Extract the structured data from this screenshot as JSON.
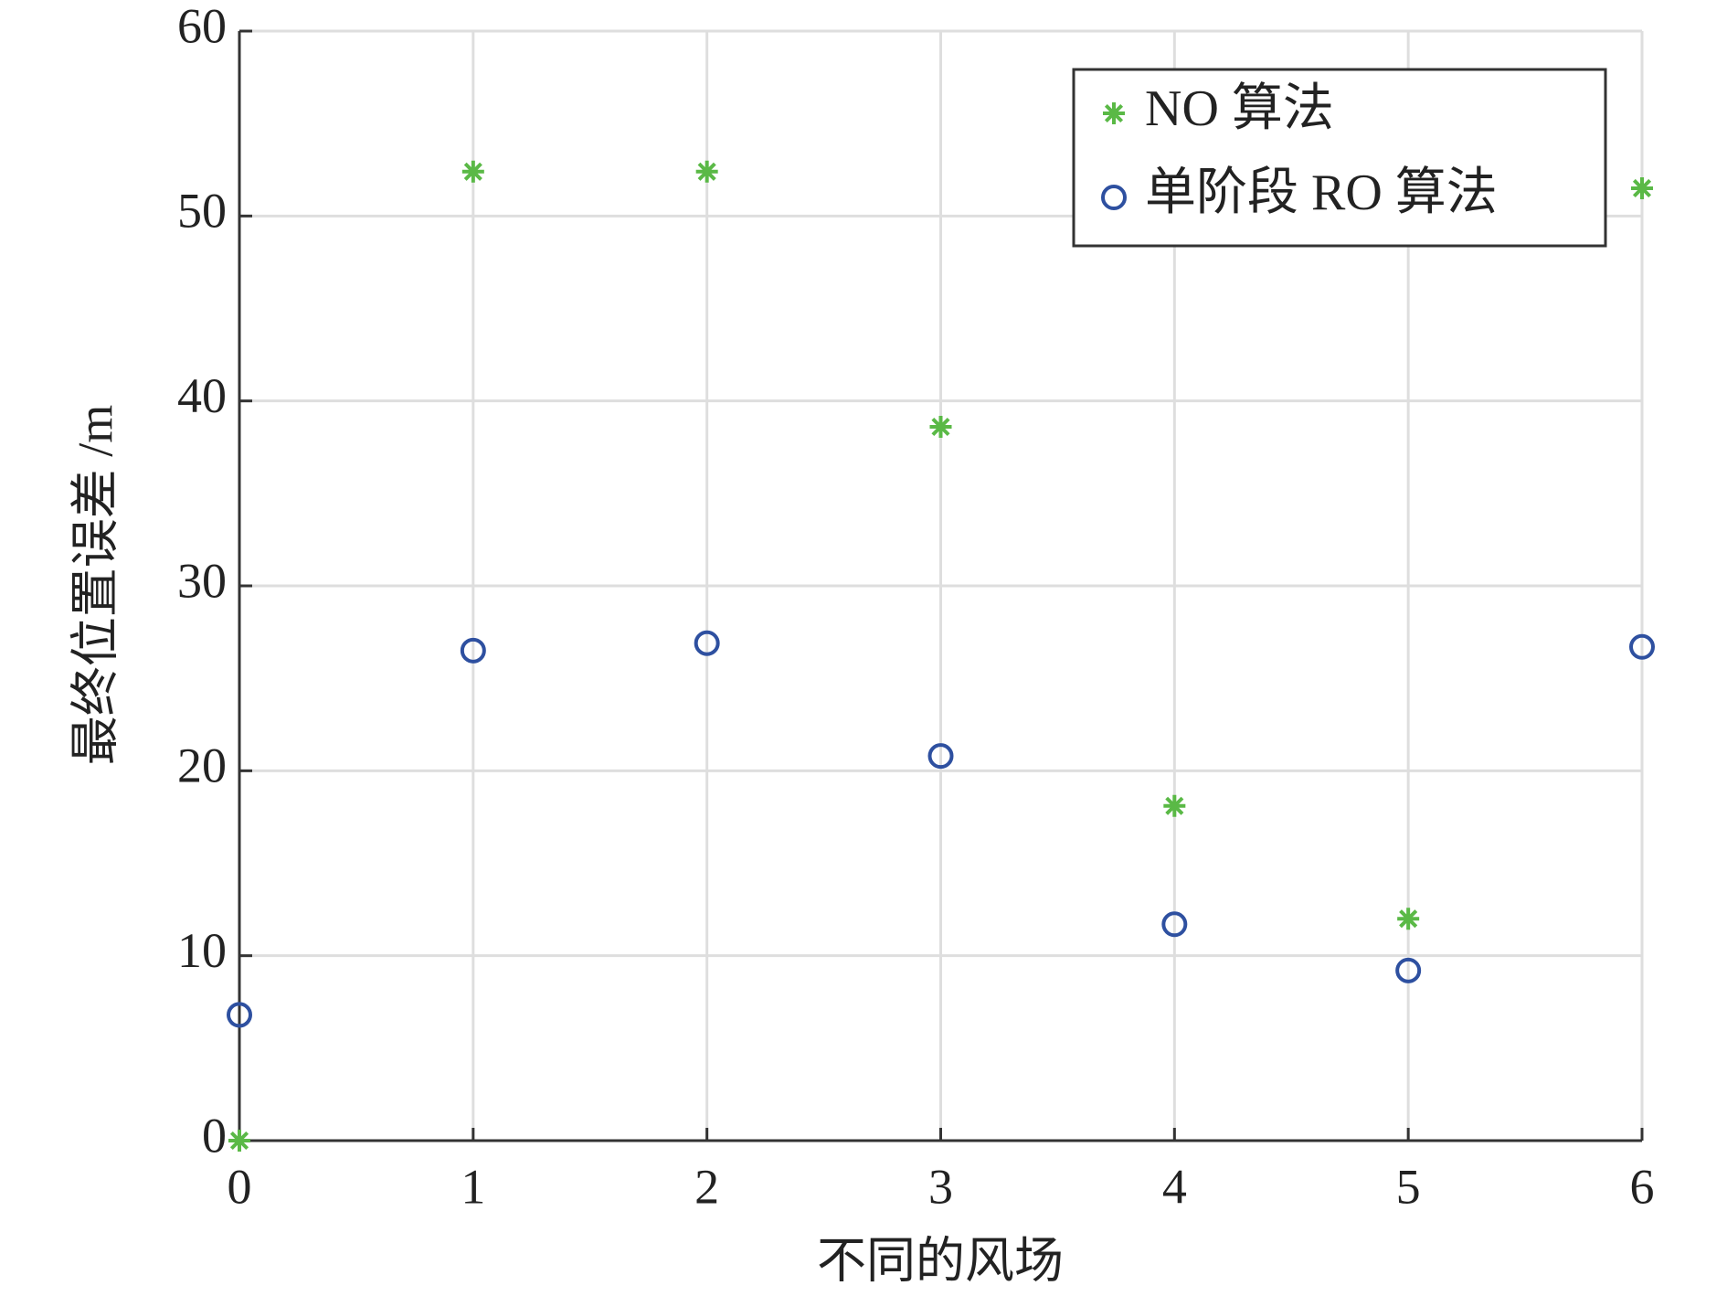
{
  "chart_data": {
    "type": "scatter",
    "xlabel": "不同的风场",
    "ylabel": "最终位置误差 /m",
    "x": [
      0,
      1,
      2,
      3,
      4,
      5,
      6
    ],
    "series": [
      {
        "name": "NO 算法",
        "color": "#5ab946",
        "marker": "asterisk",
        "values": [
          0,
          52.4,
          52.4,
          38.6,
          18.1,
          12.0,
          51.5
        ]
      },
      {
        "name": "单阶段 RO 算法",
        "color": "#2e50a0",
        "marker": "circle",
        "values": [
          6.8,
          26.5,
          26.9,
          20.8,
          11.7,
          9.2,
          26.7
        ]
      }
    ],
    "xlim": [
      0,
      6
    ],
    "ylim": [
      0,
      60
    ],
    "xticks": [
      0,
      1,
      2,
      3,
      4,
      5,
      6
    ],
    "yticks": [
      0,
      10,
      20,
      30,
      40,
      50,
      60
    ],
    "grid": true,
    "legend": "upper right"
  }
}
